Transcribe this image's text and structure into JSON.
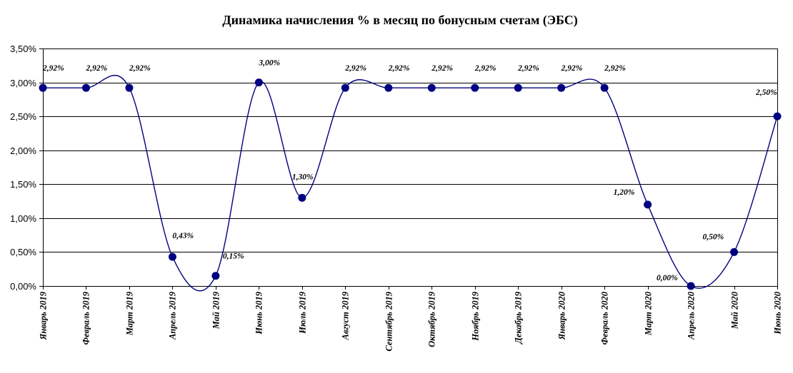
{
  "chart_data": {
    "type": "line",
    "title": "Динамика начисления % в месяц по бонусным счетам (ЭБС)",
    "xlabel": "",
    "ylabel": "",
    "categories": [
      "Январь 2019",
      "Февраль 2019",
      "Март 2019",
      "Апрель 2019",
      "Май 2019",
      "Июнь 2019",
      "Июль 2019",
      "Август 2019",
      "Сентябрь 2019",
      "Октябрь 2019",
      "Ноябрь 2019",
      "Декабрь 2019",
      "Январь 2020",
      "Февраль 2020",
      "Март 2020",
      "Апрель 2020",
      "Май 2020",
      "Июнь 2020"
    ],
    "series": [
      {
        "values": [
          2.92,
          2.92,
          2.92,
          0.43,
          0.15,
          3.0,
          1.3,
          2.92,
          2.92,
          2.92,
          2.92,
          2.92,
          2.92,
          2.92,
          1.2,
          0.0,
          0.5,
          2.5
        ],
        "data_labels": [
          "2,92%",
          "2,92%",
          "2,92%",
          "0,43%",
          "0,15%",
          "3,00%",
          "1,30%",
          "2,92%",
          "2,92%",
          "2,92%",
          "2,92%",
          "2,92%",
          "2,92%",
          "2,92%",
          "1,20%",
          "0,00%",
          "0,50%",
          "2,50%"
        ]
      }
    ],
    "y_ticks": [
      0,
      0.5,
      1.0,
      1.5,
      2.0,
      2.5,
      3.0,
      3.5
    ],
    "y_tick_labels": [
      "0,00%",
      "0,50%",
      "1,00%",
      "1,50%",
      "2,00%",
      "2,50%",
      "3,00%",
      "3,50%"
    ],
    "ylim": [
      0,
      3.5
    ],
    "smooth": true,
    "grid": "horizontal",
    "legend": "none",
    "colors": {
      "line": "#000080",
      "marker": "#000080",
      "grid": "#000000",
      "background": "#ffffff"
    }
  }
}
